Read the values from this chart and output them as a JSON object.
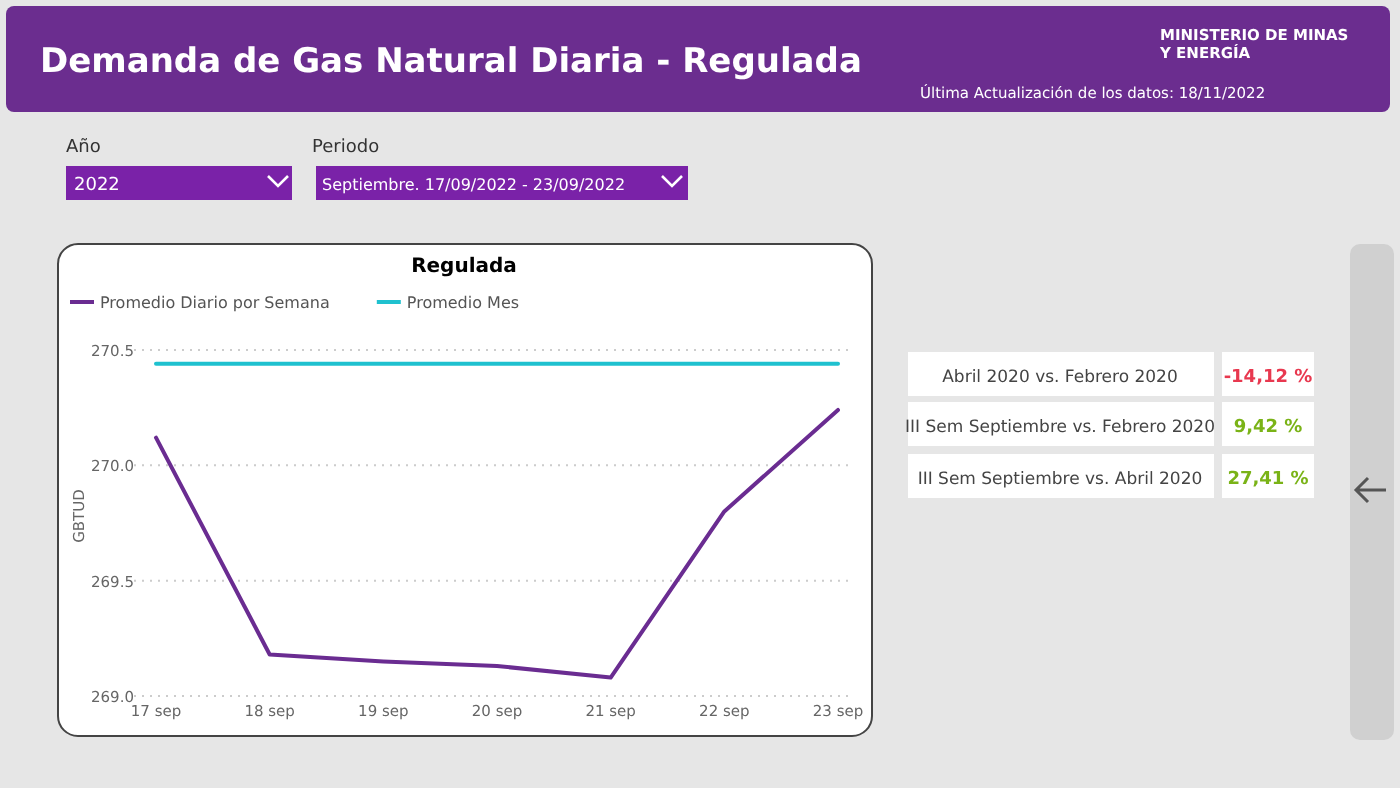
{
  "chart_data": {
    "type": "line",
    "title": "Regulada",
    "ylabel": "GBTUD",
    "categories": [
      "17 sep",
      "18 sep",
      "19 sep",
      "20 sep",
      "21 sep",
      "22 sep",
      "23 sep"
    ],
    "series": [
      {
        "name": "Promedio Diario por Semana",
        "color": "#6a2c91",
        "values": [
          270.12,
          269.18,
          269.15,
          269.13,
          269.08,
          269.8,
          270.24
        ]
      },
      {
        "name": "Promedio Mes",
        "color": "#1fc1cf",
        "values": [
          270.44,
          270.44,
          270.44,
          270.44,
          270.44,
          270.44,
          270.44
        ]
      }
    ],
    "ylim": [
      269,
      270.5
    ],
    "yticks": [
      {
        "value": 269,
        "label": "269.0"
      },
      {
        "value": 269.5,
        "label": "269.5"
      },
      {
        "value": 270,
        "label": "270.0"
      },
      {
        "value": 270.5,
        "label": "270.5"
      }
    ],
    "grid": "y",
    "legend": "top left",
    "marker": "none",
    "line_style": "solid",
    "annotations": [
      "Demanda de Gas Natural Diaria - Regulada",
      "MINISTERIO DE MINAS Y ENERGÍA",
      "Última Actualización de los datos: 18/11/2022",
      "Año",
      "2022",
      "Periodo",
      "Septiembre. 17/09/2022 - 23/09/2022",
      "Abril 2020 vs. Febrero 2020",
      "-14,12 %",
      "III Sem Septiembre vs. Febrero 2020",
      "9,42 %",
      "III Sem Septiembre vs. Abril 2020",
      "27,41 %"
    ]
  }
}
